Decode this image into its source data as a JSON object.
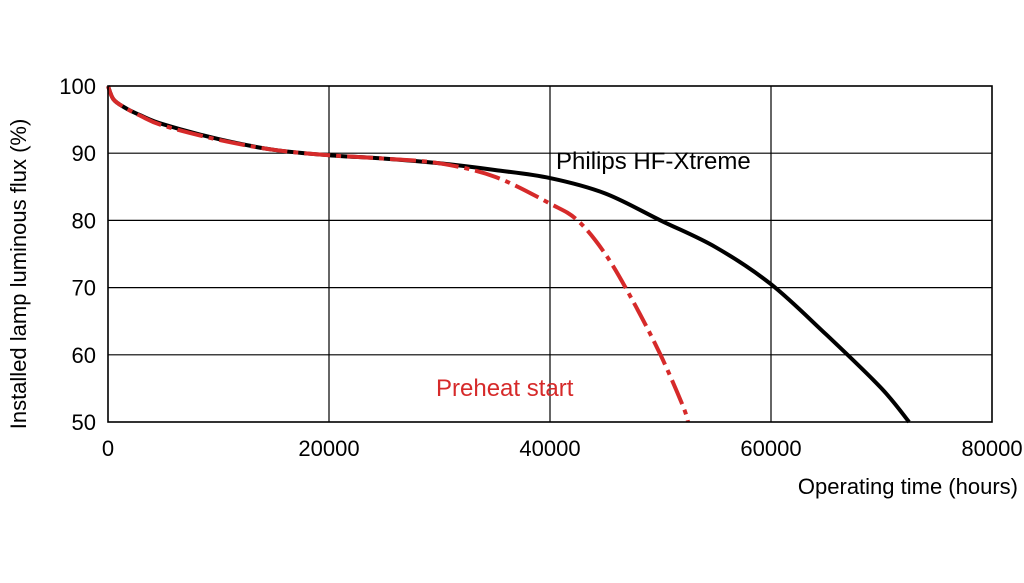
{
  "chart_data": {
    "type": "line",
    "title": "",
    "xlabel": "Operating time (hours)",
    "ylabel": "Installed lamp luminous flux  (%)",
    "xlim": [
      0,
      80000
    ],
    "ylim": [
      50,
      100
    ],
    "x_ticks": [
      0,
      20000,
      40000,
      60000,
      80000
    ],
    "y_ticks": [
      50,
      60,
      70,
      80,
      90,
      100
    ],
    "x_tick_labels": [
      "0",
      "20000",
      "40000",
      "60000",
      "80000"
    ],
    "y_tick_labels": [
      "50",
      "60",
      "70",
      "80",
      "90",
      "100"
    ],
    "grid": true,
    "series": [
      {
        "name": "Philips HF-Xtreme",
        "color": "#000000",
        "line_style": "solid",
        "points": [
          [
            0,
            100
          ],
          [
            500,
            98
          ],
          [
            1500,
            96.8
          ],
          [
            3000,
            95.6
          ],
          [
            5000,
            94.3
          ],
          [
            10000,
            92.1
          ],
          [
            15000,
            90.5
          ],
          [
            20000,
            89.7
          ],
          [
            25000,
            89.2
          ],
          [
            30000,
            88.5
          ],
          [
            35000,
            87.5
          ],
          [
            40000,
            86.3
          ],
          [
            45000,
            84
          ],
          [
            50000,
            80
          ],
          [
            55000,
            76
          ],
          [
            60000,
            70.5
          ],
          [
            65000,
            63
          ],
          [
            70000,
            55
          ],
          [
            72500,
            50
          ]
        ]
      },
      {
        "name": "Preheat start",
        "color": "#d62a2a",
        "line_style": "dash-dot",
        "points": [
          [
            0,
            100
          ],
          [
            500,
            98
          ],
          [
            1500,
            96.8
          ],
          [
            3000,
            95.5
          ],
          [
            5000,
            94.1
          ],
          [
            10000,
            92
          ],
          [
            15000,
            90.5
          ],
          [
            20000,
            89.7
          ],
          [
            25000,
            89.2
          ],
          [
            30000,
            88.5
          ],
          [
            35000,
            86.5
          ],
          [
            40000,
            82.5
          ],
          [
            42500,
            80
          ],
          [
            45000,
            75
          ],
          [
            47500,
            68
          ],
          [
            50000,
            60
          ],
          [
            52000,
            52.5
          ],
          [
            52500,
            50
          ]
        ]
      }
    ]
  }
}
